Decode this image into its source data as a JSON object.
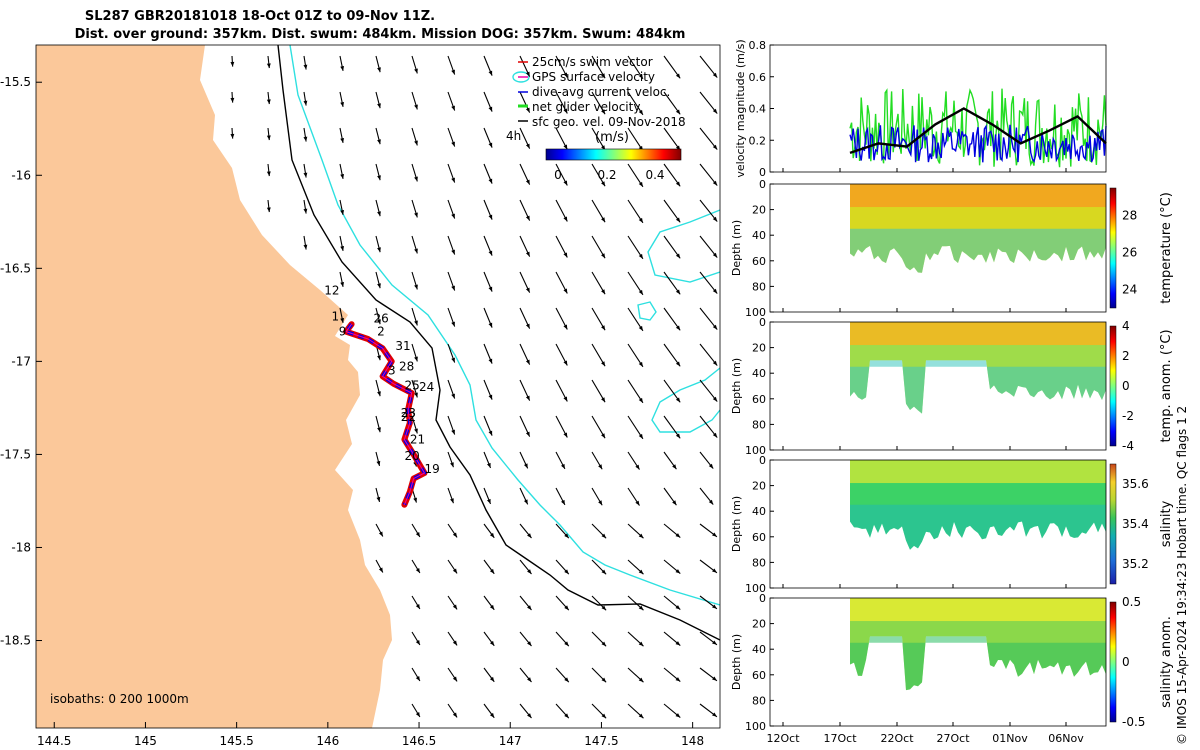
{
  "header": {
    "title_line1": "SL287 GBR20181018 18-Oct 01Z to 09-Nov 11Z.",
    "title_line2": "Dist. over ground: 357km. Dist. swum: 484km. Mission DOG: 357km. Swum: 484km"
  },
  "colors": {
    "land": "#fbc89a",
    "isobath_200": "#2ee0e0",
    "isobath_1000": "#000000",
    "track_red": "#e00000",
    "track_blue": "#0000e0",
    "net_glider_velocity": "#22dd22",
    "gps_velocity": "#ee00aa"
  },
  "map": {
    "legend": {
      "swim_vector": "25cm/s swim vector",
      "gps_velocity": "GPS surface velocity",
      "dive_avg": "dive-avg current veloc.",
      "net_glider": "net glider velocity",
      "sfc_geo": "sfc geo. vel. 09-Nov-2018",
      "interval": "4h",
      "colorbar_unit": "(m/s)",
      "colorbar_ticks": [
        "0",
        "0.2",
        "0.4"
      ]
    },
    "isobaths_label": "isobaths: 0   200  1000m",
    "lon_ticks": [
      "144.5",
      "145",
      "145.5",
      "146",
      "146.5",
      "147",
      "147.5",
      "148"
    ],
    "lat_ticks": [
      "-15.5",
      "-16",
      "-16.5",
      "-17",
      "-17.5",
      "-18",
      "-18.5"
    ],
    "day_labels": [
      {
        "t": "12",
        "lon": 145.98,
        "lat": -16.64
      },
      {
        "t": "1",
        "lon": 146.02,
        "lat": -16.78
      },
      {
        "t": "26",
        "lon": 146.25,
        "lat": -16.79
      },
      {
        "t": "9",
        "lon": 146.06,
        "lat": -16.86
      },
      {
        "t": "2",
        "lon": 146.27,
        "lat": -16.86
      },
      {
        "t": "31",
        "lon": 146.37,
        "lat": -16.94
      },
      {
        "t": "28",
        "lon": 146.39,
        "lat": -17.05
      },
      {
        "t": "3",
        "lon": 146.33,
        "lat": -17.07
      },
      {
        "t": "25",
        "lon": 146.42,
        "lat": -17.15
      },
      {
        "t": "24",
        "lon": 146.5,
        "lat": -17.16
      },
      {
        "t": "23",
        "lon": 146.4,
        "lat": -17.3
      },
      {
        "t": "22",
        "lon": 146.4,
        "lat": -17.32
      },
      {
        "t": "21",
        "lon": 146.45,
        "lat": -17.44
      },
      {
        "t": "20",
        "lon": 146.42,
        "lat": -17.53
      },
      {
        "t": "19",
        "lon": 146.53,
        "lat": -17.6
      }
    ]
  },
  "time_axis_ticks": [
    "12Oct",
    "17Oct",
    "22Oct",
    "27Oct",
    "01Nov",
    "06Nov"
  ],
  "panels": {
    "velocity_ylabel": "velocity magnitude (m/s)",
    "velocity_yticks": [
      "0",
      "0.2",
      "0.4",
      "0.6",
      "0.8"
    ],
    "depth_ylabel": "Depth (m)",
    "depth_yticks": [
      "0",
      "20",
      "40",
      "60",
      "80",
      "100"
    ],
    "temperature_label": "temperature (°C)",
    "temperature_ticks": [
      "24",
      "26",
      "28"
    ],
    "temp_anom_label": "temp. anom. (°C)",
    "temp_anom_ticks": [
      "-4",
      "-2",
      "0",
      "2",
      "4"
    ],
    "salinity_label": "salinity",
    "salinity_ticks": [
      "35.2",
      "35.4",
      "35.6"
    ],
    "salinity_anom_label": "salinity anom.",
    "salinity_anom_ticks": [
      "-0.5",
      "0",
      "0.5"
    ]
  },
  "footer": {
    "credit": "© IMOS 15-Apr-2024 19:34:23 Hobart time. QC flags 1  2"
  },
  "chart_data": [
    {
      "type": "scatter",
      "title": "SL287 GBR20181018 18-Oct 01Z to 09-Nov 11Z.",
      "xlabel": "",
      "ylabel": "",
      "xlim": [
        144.4,
        148.15
      ],
      "ylim": [
        -18.97,
        -15.3
      ],
      "series": [
        {
          "name": "net glider velocity",
          "track": [
            [
              146.13,
              -16.8
            ],
            [
              146.1,
              -16.84
            ],
            [
              146.22,
              -16.88
            ],
            [
              146.3,
              -16.93
            ],
            [
              146.35,
              -17.0
            ],
            [
              146.3,
              -17.08
            ],
            [
              146.36,
              -17.12
            ],
            [
              146.46,
              -17.17
            ],
            [
              146.44,
              -17.26
            ],
            [
              146.45,
              -17.33
            ],
            [
              146.42,
              -17.42
            ],
            [
              146.47,
              -17.5
            ],
            [
              146.5,
              -17.55
            ],
            [
              146.53,
              -17.6
            ],
            [
              146.47,
              -17.63
            ],
            [
              146.45,
              -17.7
            ],
            [
              146.42,
              -17.77
            ]
          ]
        }
      ]
    },
    {
      "type": "line",
      "ylabel": "velocity magnitude (m/s)",
      "xlabel": "",
      "x": [
        "12Oct",
        "17Oct",
        "22Oct",
        "27Oct",
        "01Nov",
        "06Nov"
      ],
      "ylim": [
        0,
        0.8
      ],
      "series": [
        {
          "name": "net glider velocity",
          "x": [
            "17Oct 12Z",
            "22Oct",
            "27Oct",
            "01Nov",
            "06Nov",
            "09Nov"
          ],
          "values": [
            0.35,
            0.3,
            0.32,
            0.3,
            0.3,
            0.28
          ]
        },
        {
          "name": "dive-avg current veloc.",
          "x": [
            "17Oct 12Z",
            "22Oct",
            "27Oct",
            "01Nov",
            "06Nov",
            "09Nov"
          ],
          "values": [
            0.18,
            0.2,
            0.2,
            0.18,
            0.2,
            0.2
          ]
        },
        {
          "name": "sfc geo. vel. 09-Nov-2018",
          "x": [
            "17Oct 12Z",
            "20Oct",
            "22Oct",
            "25Oct",
            "27Oct",
            "29Oct",
            "01Nov",
            "04Nov",
            "06Nov",
            "09Nov"
          ],
          "values": [
            0.12,
            0.18,
            0.16,
            0.3,
            0.4,
            0.3,
            0.18,
            0.26,
            0.35,
            0.18
          ]
        }
      ]
    },
    {
      "type": "heatmap",
      "ylabel": "Depth (m)",
      "colorbar_label": "temperature (°C)",
      "clim": [
        23,
        29.5
      ],
      "ylim": [
        100,
        0
      ]
    },
    {
      "type": "heatmap",
      "ylabel": "Depth (m)",
      "colorbar_label": "temp. anom. (°C)",
      "clim": [
        -4,
        4
      ],
      "ylim": [
        100,
        0
      ]
    },
    {
      "type": "heatmap",
      "ylabel": "Depth (m)",
      "colorbar_label": "salinity",
      "clim": [
        35.1,
        35.7
      ],
      "ylim": [
        100,
        0
      ]
    },
    {
      "type": "heatmap",
      "ylabel": "Depth (m)",
      "colorbar_label": "salinity anom.",
      "clim": [
        -0.5,
        0.5
      ],
      "ylim": [
        100,
        0
      ]
    }
  ]
}
